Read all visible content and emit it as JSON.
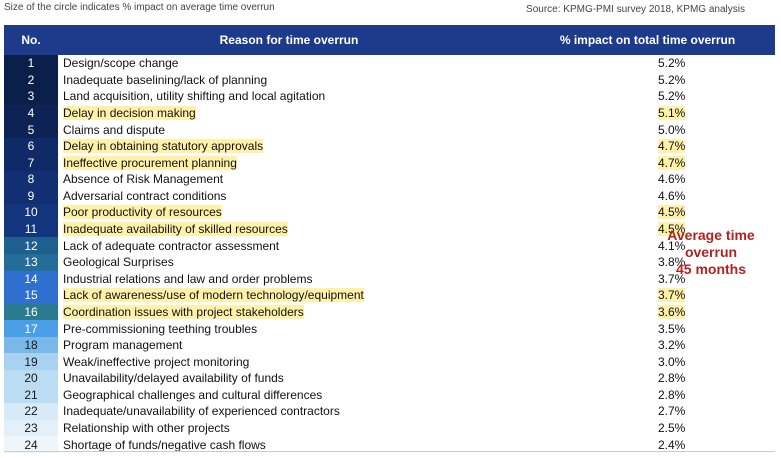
{
  "header_note": "Size of the circle indicates % impact on average time overrun",
  "source": "Source: KPMG-PMI survey 2018, KPMG analysis",
  "columns": {
    "no": "No.",
    "reason": "Reason for time overrun",
    "impact": "% impact on total time overrun"
  },
  "rows": [
    {
      "no": "1",
      "reason": "Design/scope change",
      "impact": "5.2%",
      "highlight": false,
      "num_bg": "#0b1f4b",
      "num_fg": "#ffffff"
    },
    {
      "no": "2",
      "reason": "Inadequate baselining/lack of planning",
      "impact": "5.2%",
      "highlight": false,
      "num_bg": "#0b1f4b",
      "num_fg": "#ffffff"
    },
    {
      "no": "3",
      "reason": "Land acquisition, utility shifting and local agitation",
      "impact": "5.2%",
      "highlight": false,
      "num_bg": "#0b1f4b",
      "num_fg": "#ffffff"
    },
    {
      "no": "4",
      "reason": "Delay in decision making",
      "impact": "5.1%",
      "highlight": true,
      "num_bg": "#0d2356",
      "num_fg": "#ffffff"
    },
    {
      "no": "5",
      "reason": "Claims and dispute",
      "impact": "5.0%",
      "highlight": false,
      "num_bg": "#0d2356",
      "num_fg": "#ffffff"
    },
    {
      "no": "6",
      "reason": "Delay in obtaining statutory approvals",
      "impact": "4.7%",
      "highlight": true,
      "num_bg": "#0f2a66",
      "num_fg": "#ffffff"
    },
    {
      "no": "7",
      "reason": "Ineffective procurement planning",
      "impact": "4.7%",
      "highlight": true,
      "num_bg": "#0f2a66",
      "num_fg": "#ffffff"
    },
    {
      "no": "8",
      "reason": "Absence of Risk Management",
      "impact": "4.6%",
      "highlight": false,
      "num_bg": "#112f72",
      "num_fg": "#ffffff"
    },
    {
      "no": "9",
      "reason": "Adversarial contract conditions",
      "impact": "4.6%",
      "highlight": false,
      "num_bg": "#112f72",
      "num_fg": "#ffffff"
    },
    {
      "no": "10",
      "reason": "Poor productivity of resources",
      "impact": "4.5%",
      "highlight": true,
      "num_bg": "#13357e",
      "num_fg": "#ffffff"
    },
    {
      "no": "11",
      "reason": "Inadequate availability of skilled resources",
      "impact": "4.5%",
      "highlight": true,
      "num_bg": "#13357e",
      "num_fg": "#ffffff"
    },
    {
      "no": "12",
      "reason": "Lack of adequate contractor assessment",
      "impact": "4.1%",
      "highlight": false,
      "num_bg": "#1f5f8f",
      "num_fg": "#ffffff"
    },
    {
      "no": "13",
      "reason": "Geological Surprises",
      "impact": "3.8%",
      "highlight": false,
      "num_bg": "#236d96",
      "num_fg": "#ffffff"
    },
    {
      "no": "14",
      "reason": "Industrial relations and law and order problems",
      "impact": "3.7%",
      "highlight": false,
      "num_bg": "#2f6fcf",
      "num_fg": "#ffffff"
    },
    {
      "no": "15",
      "reason": "Lack of awareness/use of modern technology/equipment",
      "impact": "3.7%",
      "highlight": true,
      "num_bg": "#2f6fcf",
      "num_fg": "#ffffff"
    },
    {
      "no": "16",
      "reason": "Coordination issues with project stakeholders",
      "impact": "3.6%",
      "highlight": true,
      "num_bg": "#2b7a8f",
      "num_fg": "#ffffff"
    },
    {
      "no": "17",
      "reason": "Pre-commissioning teething troubles",
      "impact": "3.5%",
      "highlight": false,
      "num_bg": "#4a9ee8",
      "num_fg": "#ffffff"
    },
    {
      "no": "18",
      "reason": "Program management",
      "impact": "3.2%",
      "highlight": false,
      "num_bg": "#7ab8ea",
      "num_fg": "#1a1a1a"
    },
    {
      "no": "19",
      "reason": "Weak/ineffective project monitoring",
      "impact": "3.0%",
      "highlight": false,
      "num_bg": "#a9d2f2",
      "num_fg": "#1a1a1a"
    },
    {
      "no": "20",
      "reason": "Unavailability/delayed availability of funds",
      "impact": "2.8%",
      "highlight": false,
      "num_bg": "#bcdcf4",
      "num_fg": "#1a1a1a"
    },
    {
      "no": "21",
      "reason": "Geographical challenges and cultural differences",
      "impact": "2.8%",
      "highlight": false,
      "num_bg": "#bcdcf4",
      "num_fg": "#1a1a1a"
    },
    {
      "no": "22",
      "reason": "Inadequate/unavailability of experienced contractors",
      "impact": "2.7%",
      "highlight": false,
      "num_bg": "#d6eaf8",
      "num_fg": "#1a1a1a"
    },
    {
      "no": "23",
      "reason": "Relationship with other projects",
      "impact": "2.5%",
      "highlight": false,
      "num_bg": "#e3f0fa",
      "num_fg": "#1a1a1a"
    },
    {
      "no": "24",
      "reason": "Shortage of funds/negative cash flows",
      "impact": "2.4%",
      "highlight": false,
      "num_bg": "#eef6fc",
      "num_fg": "#1a1a1a"
    }
  ],
  "callout": {
    "line1": "Average time",
    "line2": "overrun",
    "line3": "45 months"
  },
  "colors": {
    "header_bg": "#1e3a8a",
    "highlight": "#fff2a8",
    "callout_text": "#b22222"
  }
}
